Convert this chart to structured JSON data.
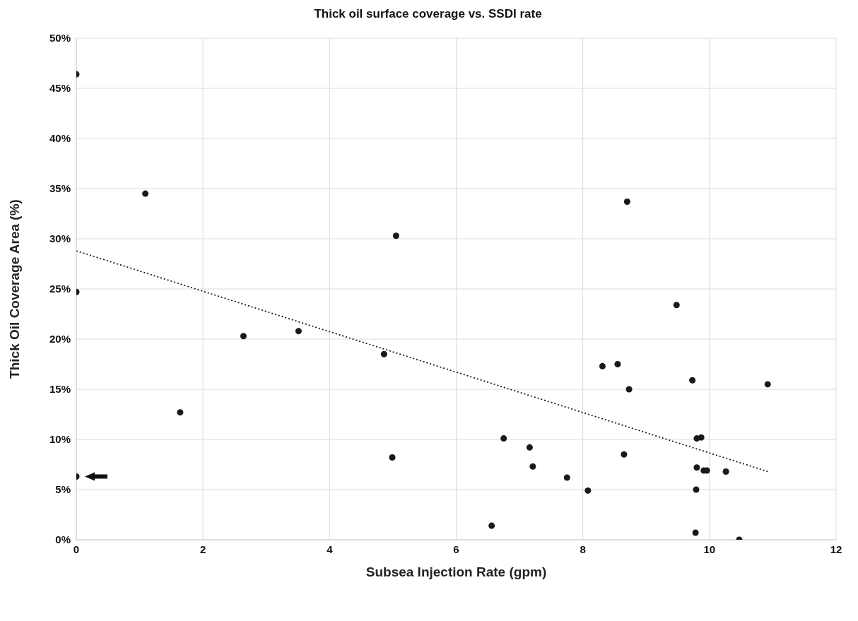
{
  "chart_data": {
    "type": "scatter",
    "title": "Thick oil surface coverage vs. SSDI rate",
    "xlabel": "Subsea Injection Rate (gpm)",
    "ylabel": "Thick Oil Coverage Area (%)",
    "xlim": [
      0,
      12
    ],
    "xticks": [
      0,
      2,
      4,
      6,
      8,
      10,
      12
    ],
    "ylim": [
      0,
      50
    ],
    "yticks": [
      {
        "value": 0,
        "label": "0%"
      },
      {
        "value": 5,
        "label": "5%"
      },
      {
        "value": 10,
        "label": "10%"
      },
      {
        "value": 15,
        "label": "15%"
      },
      {
        "value": 20,
        "label": "20%"
      },
      {
        "value": 25,
        "label": "25%"
      },
      {
        "value": 30,
        "label": "30%"
      },
      {
        "value": 35,
        "label": "35%"
      },
      {
        "value": 40,
        "label": "40%"
      },
      {
        "value": 45,
        "label": "45%"
      },
      {
        "value": 50,
        "label": "50%"
      }
    ],
    "grid": true,
    "marker": "circle",
    "series": [
      {
        "color": "#1a1a1a",
        "x": [
          0,
          1.09,
          5.05,
          0,
          2.64,
          3.51,
          0,
          4.86,
          1.64,
          4.99,
          8.7,
          9.48,
          8.31,
          8.55,
          9.73,
          8.73,
          10.92,
          6.75,
          7.16,
          9.8,
          9.87,
          8.65,
          7.21,
          9.8,
          9.91,
          9.96,
          10.26,
          7.75,
          8.08,
          9.79,
          6.56,
          9.78,
          10.47
        ],
        "values": [
          46.4,
          34.5,
          30.3,
          24.7,
          20.3,
          20.8,
          6.3,
          18.5,
          12.7,
          8.2,
          33.7,
          23.4,
          17.3,
          17.5,
          15.9,
          15,
          15.5,
          10.1,
          9.2,
          10.1,
          10.2,
          8.5,
          7.3,
          7.2,
          6.9,
          6.9,
          6.8,
          6.2,
          4.9,
          5,
          1.4,
          0.7,
          0
        ]
      },
      {
        "type": "line",
        "color": "#1a1a1a",
        "x": [
          0,
          10.92
        ],
        "values": [
          28.8,
          6.8
        ],
        "line_style": "dotted",
        "marker": "none"
      }
    ]
  }
}
